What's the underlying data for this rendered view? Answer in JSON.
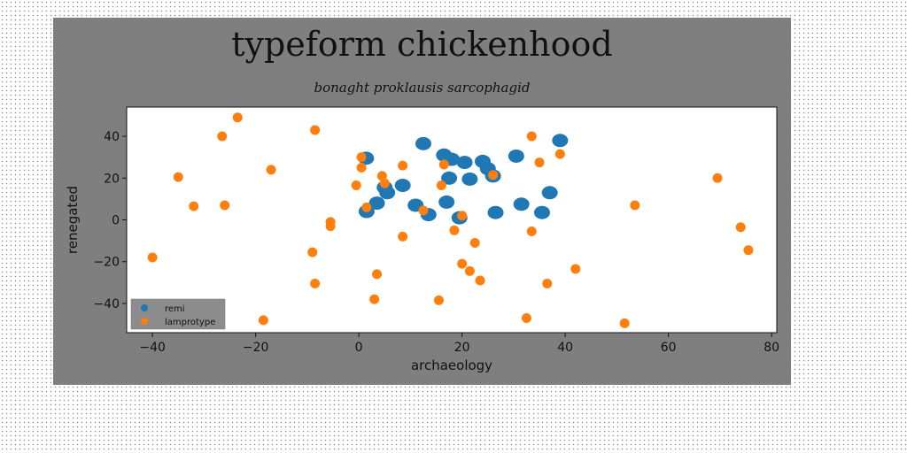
{
  "chart_data": {
    "type": "scatter",
    "title": "typeform chickenhood",
    "subtitle": "bonaght proklausis sarcophagid",
    "xlabel": "archaeology",
    "ylabel": "renegated",
    "xlim": [
      -45,
      81
    ],
    "ylim": [
      -54,
      54
    ],
    "xticks": [
      -40,
      -20,
      0,
      20,
      40,
      60,
      80
    ],
    "yticks": [
      -40,
      -20,
      0,
      20,
      40
    ],
    "xtick_labels": [
      "−40",
      "−20",
      "0",
      "20",
      "40",
      "60",
      "80"
    ],
    "ytick_labels": [
      "−40",
      "−20",
      "0",
      "20",
      "40"
    ],
    "grid": false,
    "legend_position": "lower-left",
    "series": [
      {
        "name": "remi",
        "color": "#1f77b4",
        "points": [
          [
            1.4,
            29.5
          ],
          [
            12.5,
            36.5
          ],
          [
            16.5,
            31.0
          ],
          [
            18.0,
            29.0
          ],
          [
            20.5,
            27.5
          ],
          [
            24.0,
            28.0
          ],
          [
            25.0,
            24.5
          ],
          [
            26.0,
            21.0
          ],
          [
            17.5,
            20.0
          ],
          [
            21.5,
            19.5
          ],
          [
            30.5,
            30.5
          ],
          [
            39.0,
            38.0
          ],
          [
            37.0,
            13.0
          ],
          [
            31.5,
            7.5
          ],
          [
            35.5,
            3.5
          ],
          [
            26.5,
            3.5
          ],
          [
            17.0,
            8.5
          ],
          [
            19.5,
            1.0
          ],
          [
            13.5,
            2.5
          ],
          [
            11.0,
            7.0
          ],
          [
            8.5,
            16.5
          ],
          [
            5.0,
            15.5
          ],
          [
            5.5,
            13.0
          ],
          [
            3.5,
            8.0
          ],
          [
            1.5,
            4.0
          ]
        ]
      },
      {
        "name": "lamprotype",
        "color": "#ff7f0e",
        "points": [
          [
            -23.5,
            49.0
          ],
          [
            -26.5,
            40.0
          ],
          [
            -8.5,
            43.0
          ],
          [
            -17,
            24.0
          ],
          [
            -35,
            20.5
          ],
          [
            -32,
            6.5
          ],
          [
            -26,
            7.0
          ],
          [
            -40,
            -18.0
          ],
          [
            -9,
            -15.5
          ],
          [
            -8.5,
            -30.5
          ],
          [
            -18.5,
            -48.0
          ],
          [
            -5.5,
            -1.0
          ],
          [
            -5.5,
            -3.0
          ],
          [
            -0.5,
            16.5
          ],
          [
            0.5,
            25.0
          ],
          [
            0.5,
            30.0
          ],
          [
            4.5,
            21.0
          ],
          [
            5.0,
            17.5
          ],
          [
            8.5,
            26.0
          ],
          [
            1.5,
            6.0
          ],
          [
            8.5,
            -8.0
          ],
          [
            3.5,
            -26.0
          ],
          [
            3.0,
            -38.0
          ],
          [
            12.5,
            4.5
          ],
          [
            15.5,
            -38.5
          ],
          [
            16.0,
            16.5
          ],
          [
            16.5,
            26.5
          ],
          [
            18.5,
            -5.0
          ],
          [
            20.0,
            2.0
          ],
          [
            22.5,
            -11.0
          ],
          [
            20.0,
            -21.0
          ],
          [
            21.5,
            -24.5
          ],
          [
            23.5,
            -29.0
          ],
          [
            26.0,
            21.5
          ],
          [
            33.5,
            40.0
          ],
          [
            35.0,
            27.5
          ],
          [
            39.0,
            31.5
          ],
          [
            33.5,
            -5.5
          ],
          [
            36.5,
            -30.5
          ],
          [
            32.5,
            -47.0
          ],
          [
            42.0,
            -23.5
          ],
          [
            51.5,
            -49.5
          ],
          [
            53.5,
            7.0
          ],
          [
            69.5,
            20.0
          ],
          [
            74.0,
            -3.5
          ],
          [
            75.5,
            -14.5
          ]
        ]
      }
    ]
  }
}
